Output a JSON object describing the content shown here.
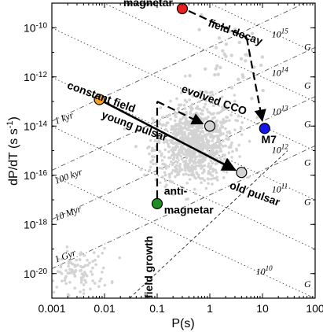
{
  "chart_data": {
    "type": "scatter",
    "x_scale": "log",
    "y_scale": "log",
    "xlim": [
      0.001,
      100
    ],
    "ylim": [
      1e-21,
      1e-09
    ],
    "xlabel": "P(s)",
    "ylabel": "dP/dT (s s",
    "ylabel_superscript": "-1",
    "ylabel_close": ")",
    "x_ticks": [
      {
        "value": 0.001,
        "label": "0.001"
      },
      {
        "value": 0.01,
        "label": "0.01"
      },
      {
        "value": 0.1,
        "label": "0.1"
      },
      {
        "value": 1,
        "label": "1"
      },
      {
        "value": 10,
        "label": "10"
      },
      {
        "value": 100,
        "label": "100"
      }
    ],
    "y_ticks": [
      {
        "value": 1e-10,
        "base": "10",
        "exp": "-10"
      },
      {
        "value": 1e-12,
        "base": "10",
        "exp": "-12"
      },
      {
        "value": 1e-14,
        "base": "10",
        "exp": "-14"
      },
      {
        "value": 1e-16,
        "base": "10",
        "exp": "-16"
      },
      {
        "value": 1e-18,
        "base": "10",
        "exp": "-18"
      },
      {
        "value": 1e-20,
        "base": "10",
        "exp": "-20"
      }
    ],
    "background_pulsars_color": "#d3d3d3",
    "highlighted_objects": [
      {
        "label": "magnetar",
        "P": 0.3,
        "Pdot": 6e-10,
        "color": "#e8201f"
      },
      {
        "label": "young pulsar",
        "P": 0.008,
        "Pdot": 1.2e-13,
        "color": "#f5a01e"
      },
      {
        "label": "evolved CCO",
        "P": 1.0,
        "Pdot": 1e-14,
        "color": "#d3d3d3"
      },
      {
        "label": "M7",
        "P": 11,
        "Pdot": 8e-15,
        "color": "#1515ee"
      },
      {
        "label": "old pulsar",
        "P": 4,
        "Pdot": 1.3e-16,
        "color": "#d3d3d3"
      },
      {
        "label": "anti-magnetar",
        "P": 0.1,
        "Pdot": 7e-18,
        "color": "#1f8f1f"
      }
    ],
    "annotations": {
      "constant_field": "constant field",
      "field_decay": "field decay",
      "field_growth": "field growth",
      "magnetar": "magnetar",
      "young_pulsar": "young pulsar",
      "evolved_cco": "evolved CCO",
      "m7": "M7",
      "old_pulsar": "old pulsar",
      "anti_magnetar_line1": "anti-",
      "anti_magnetar_line2": "magnetar"
    },
    "age_lines": [
      {
        "label": "1 kyr",
        "age_yr": 1000
      },
      {
        "label": "100 kyr",
        "age_yr": 100000
      },
      {
        "label": "10 Myr",
        "age_yr": 10000000
      },
      {
        "label": "1 Gyr",
        "age_yr": 1000000000
      }
    ],
    "field_lines": [
      {
        "exp": "15",
        "B": 1000000000000000.0
      },
      {
        "exp": "14",
        "B": 100000000000000.0
      },
      {
        "exp": "13",
        "B": 10000000000000.0
      },
      {
        "exp": "12",
        "B": 1000000000000.0
      },
      {
        "exp": "11",
        "B": 100000000000.0
      },
      {
        "exp": "10",
        "B": 10000000000.0
      }
    ],
    "field_unit": "G",
    "field_base": "10",
    "death_line": true
  }
}
